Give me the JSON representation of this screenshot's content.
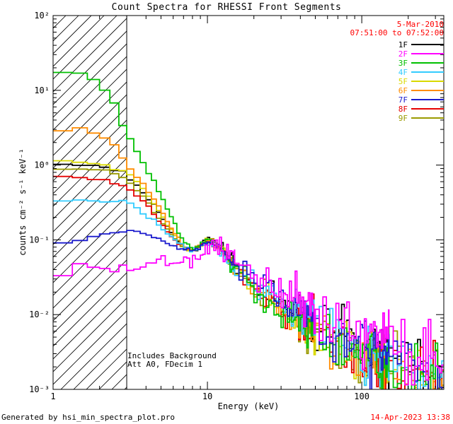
{
  "title": "Count Spectra for RHESSI Front Segments",
  "annotations": {
    "date": "5-Mar-2010",
    "time_range": "07:51:00 to 07:52:00",
    "note_line1": "Includes Background",
    "note_line2": "Att A0, FDecim 1"
  },
  "footer": {
    "generated_by": "Generated by hsi_min_spectra_plot.pro",
    "timestamp": "14-Apr-2023 13:38"
  },
  "colors": {
    "annotation_red": "#ff0000",
    "axis": "#000000",
    "background": "#ffffff"
  },
  "chart_data": {
    "type": "line",
    "title": "Count Spectra for RHESSI Front Segments",
    "x_scale": "log",
    "y_scale": "log",
    "xlim": [
      1,
      340
    ],
    "ylim": [
      0.001,
      100
    ],
    "xlabel": "Energy (keV)",
    "ylabel": "counts cm⁻² s⁻¹ keV⁻¹",
    "grid": false,
    "legend_position": "top-right",
    "xticks": [
      {
        "value": 1,
        "label": "1"
      },
      {
        "value": 10,
        "label": "10"
      },
      {
        "value": 100,
        "label": "100"
      }
    ],
    "yticks": [
      {
        "value": 0.001,
        "label": "10⁻³"
      },
      {
        "value": 0.01,
        "label": "10⁻²"
      },
      {
        "value": 0.1,
        "label": "10⁻¹"
      },
      {
        "value": 1,
        "label": "10⁰"
      },
      {
        "value": 10,
        "label": "10¹"
      },
      {
        "value": 100,
        "label": "10²"
      }
    ],
    "hatch_region": {
      "x_start": 1,
      "x_end": 3
    },
    "binning": [
      {
        "from": 1,
        "to": 15,
        "step": 0.3333
      },
      {
        "from": 15,
        "to": 50,
        "step": 1
      },
      {
        "from": 50,
        "to": 150,
        "step": 3
      },
      {
        "from": 150,
        "to": 340,
        "step": 10
      }
    ],
    "noise": {
      "ramp_start_lg": 0.95,
      "ramp_full_lg": 2.0,
      "max_sigma": 0.2
    },
    "draw_order": [
      "1F",
      "5F",
      "9F",
      "8F",
      "6F",
      "4F",
      "3F",
      "7F",
      "2F"
    ],
    "series": [
      {
        "name": "1F",
        "color": "#000000",
        "seed": 7,
        "base_noise": 0.015,
        "points": [
          [
            1,
            1.05
          ],
          [
            2,
            1.0
          ],
          [
            3,
            0.75
          ],
          [
            4,
            0.4
          ],
          [
            5,
            0.2
          ],
          [
            6,
            0.11
          ],
          [
            7,
            0.078
          ],
          [
            8,
            0.07
          ],
          [
            10,
            0.1
          ],
          [
            12,
            0.08
          ],
          [
            15,
            0.046
          ],
          [
            20,
            0.025
          ],
          [
            30,
            0.013
          ],
          [
            50,
            0.007
          ],
          [
            100,
            0.0035
          ],
          [
            200,
            0.002
          ],
          [
            340,
            0.0015
          ]
        ]
      },
      {
        "name": "2F",
        "color": "#ff00ff",
        "seed": 13,
        "base_noise": 0.05,
        "points": [
          [
            1,
            0.045
          ],
          [
            3,
            0.047
          ],
          [
            6,
            0.05
          ],
          [
            9,
            0.055
          ],
          [
            11,
            0.09
          ],
          [
            13,
            0.07
          ],
          [
            15,
            0.06
          ],
          [
            20,
            0.035
          ],
          [
            30,
            0.02
          ],
          [
            50,
            0.012
          ],
          [
            100,
            0.006
          ],
          [
            200,
            0.003
          ],
          [
            340,
            0.002
          ]
        ]
      },
      {
        "name": "3F",
        "color": "#00c000",
        "seed": 21,
        "base_noise": 0.015,
        "points": [
          [
            1,
            17
          ],
          [
            1.4,
            18
          ],
          [
            2,
            13
          ],
          [
            2.5,
            6.5
          ],
          [
            3,
            2.6
          ],
          [
            4,
            0.95
          ],
          [
            5,
            0.4
          ],
          [
            6,
            0.18
          ],
          [
            7,
            0.095
          ],
          [
            8,
            0.075
          ],
          [
            10,
            0.1
          ],
          [
            12,
            0.08
          ],
          [
            15,
            0.045
          ],
          [
            20,
            0.022
          ],
          [
            30,
            0.011
          ],
          [
            50,
            0.006
          ],
          [
            100,
            0.003
          ],
          [
            200,
            0.0017
          ],
          [
            340,
            0.0012
          ]
        ]
      },
      {
        "name": "4F",
        "color": "#33ccff",
        "seed": 34,
        "base_noise": 0.015,
        "points": [
          [
            1,
            0.33
          ],
          [
            2,
            0.35
          ],
          [
            3,
            0.31
          ],
          [
            4,
            0.22
          ],
          [
            5,
            0.15
          ],
          [
            6,
            0.1
          ],
          [
            7,
            0.08
          ],
          [
            8,
            0.07
          ],
          [
            10,
            0.095
          ],
          [
            12,
            0.076
          ],
          [
            15,
            0.045
          ],
          [
            20,
            0.024
          ],
          [
            30,
            0.013
          ],
          [
            50,
            0.007
          ],
          [
            100,
            0.0035
          ],
          [
            200,
            0.002
          ],
          [
            340,
            0.0014
          ]
        ]
      },
      {
        "name": "5F",
        "color": "#d9d900",
        "seed": 55,
        "base_noise": 0.015,
        "points": [
          [
            1,
            1.15
          ],
          [
            2,
            1.1
          ],
          [
            3,
            0.8
          ],
          [
            4,
            0.45
          ],
          [
            5,
            0.22
          ],
          [
            6,
            0.12
          ],
          [
            7,
            0.082
          ],
          [
            8,
            0.07
          ],
          [
            10,
            0.1
          ],
          [
            12,
            0.08
          ],
          [
            15,
            0.046
          ],
          [
            20,
            0.024
          ],
          [
            30,
            0.012
          ],
          [
            50,
            0.006
          ],
          [
            100,
            0.003
          ],
          [
            200,
            0.0018
          ],
          [
            340,
            0.0013
          ]
        ]
      },
      {
        "name": "6F",
        "color": "#ff8c00",
        "seed": 89,
        "base_noise": 0.015,
        "points": [
          [
            1,
            2.8
          ],
          [
            1.5,
            3.0
          ],
          [
            2,
            2.6
          ],
          [
            2.5,
            1.8
          ],
          [
            3,
            1.1
          ],
          [
            4,
            0.5
          ],
          [
            5,
            0.25
          ],
          [
            6,
            0.13
          ],
          [
            7,
            0.085
          ],
          [
            8,
            0.072
          ],
          [
            10,
            0.1
          ],
          [
            12,
            0.078
          ],
          [
            15,
            0.045
          ],
          [
            20,
            0.023
          ],
          [
            30,
            0.012
          ],
          [
            50,
            0.006
          ],
          [
            100,
            0.003
          ],
          [
            200,
            0.0017
          ],
          [
            340,
            0.0012
          ]
        ]
      },
      {
        "name": "7F",
        "color": "#1a1acd",
        "seed": 144,
        "base_noise": 0.015,
        "points": [
          [
            1,
            0.09
          ],
          [
            1.5,
            0.1
          ],
          [
            2,
            0.12
          ],
          [
            3,
            0.13
          ],
          [
            4,
            0.12
          ],
          [
            5,
            0.1
          ],
          [
            6,
            0.085
          ],
          [
            7,
            0.075
          ],
          [
            8,
            0.07
          ],
          [
            10,
            0.095
          ],
          [
            12,
            0.078
          ],
          [
            15,
            0.048
          ],
          [
            20,
            0.028
          ],
          [
            30,
            0.015
          ],
          [
            50,
            0.008
          ],
          [
            100,
            0.004
          ],
          [
            200,
            0.0022
          ],
          [
            340,
            0.0016
          ]
        ]
      },
      {
        "name": "8F",
        "color": "#e60000",
        "seed": 233,
        "base_noise": 0.015,
        "points": [
          [
            1,
            0.72
          ],
          [
            2,
            0.65
          ],
          [
            3,
            0.5
          ],
          [
            4,
            0.3
          ],
          [
            5,
            0.17
          ],
          [
            6,
            0.1
          ],
          [
            7,
            0.078
          ],
          [
            8,
            0.07
          ],
          [
            10,
            0.098
          ],
          [
            12,
            0.078
          ],
          [
            15,
            0.045
          ],
          [
            20,
            0.024
          ],
          [
            30,
            0.012
          ],
          [
            50,
            0.006
          ],
          [
            100,
            0.003
          ],
          [
            200,
            0.0017
          ],
          [
            340,
            0.0012
          ]
        ]
      },
      {
        "name": "9F",
        "color": "#9a9a00",
        "seed": 377,
        "base_noise": 0.015,
        "points": [
          [
            1,
            0.88
          ],
          [
            2,
            0.85
          ],
          [
            3,
            0.65
          ],
          [
            4,
            0.35
          ],
          [
            5,
            0.18
          ],
          [
            6,
            0.11
          ],
          [
            7,
            0.08
          ],
          [
            8,
            0.07
          ],
          [
            10,
            0.1
          ],
          [
            12,
            0.08
          ],
          [
            15,
            0.046
          ],
          [
            20,
            0.024
          ],
          [
            30,
            0.012
          ],
          [
            50,
            0.006
          ],
          [
            100,
            0.003
          ],
          [
            200,
            0.0017
          ],
          [
            340,
            0.0012
          ]
        ]
      }
    ]
  }
}
